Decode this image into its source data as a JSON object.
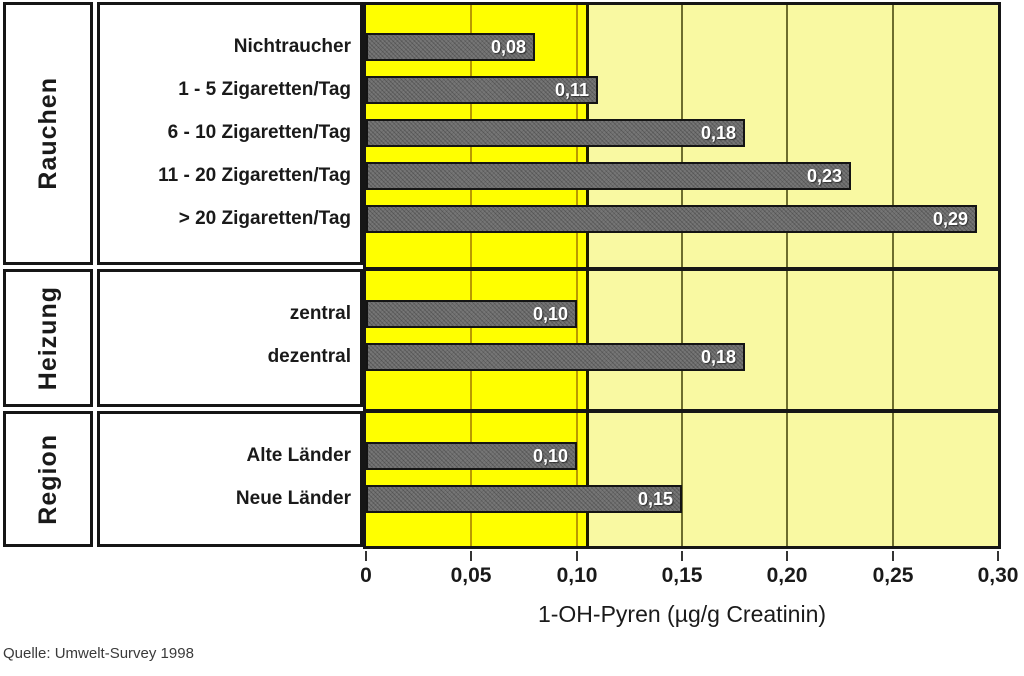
{
  "source_note": "Quelle: Umwelt-Survey 1998",
  "chart_data": {
    "type": "bar",
    "orientation": "horizontal",
    "xlabel": "1-OH-Pyren (µg/g Creatinin)",
    "xlim": [
      0,
      0.3
    ],
    "grid": true,
    "ticks": [
      {
        "value": 0,
        "label": "0"
      },
      {
        "value": 0.05,
        "label": "0,05"
      },
      {
        "value": 0.1,
        "label": "0,10"
      },
      {
        "value": 0.15,
        "label": "0,15"
      },
      {
        "value": 0.2,
        "label": "0,20"
      },
      {
        "value": 0.25,
        "label": "0,25"
      },
      {
        "value": 0.3,
        "label": "0,30"
      }
    ],
    "reference_band": {
      "from": 0,
      "to": 0.105
    },
    "groups": [
      {
        "label": "Rauchen",
        "items": [
          {
            "label": "Nichtraucher",
            "value": 0.08,
            "value_label": "0,08"
          },
          {
            "label": "1 - 5 Zigaretten/Tag",
            "value": 0.11,
            "value_label": "0,11"
          },
          {
            "label": "6 - 10 Zigaretten/Tag",
            "value": 0.18,
            "value_label": "0,18"
          },
          {
            "label": "11 - 20 Zigaretten/Tag",
            "value": 0.23,
            "value_label": "0,23"
          },
          {
            "label": "> 20 Zigaretten/Tag",
            "value": 0.29,
            "value_label": "0,29"
          }
        ]
      },
      {
        "label": "Heizung",
        "items": [
          {
            "label": "zentral",
            "value": 0.1,
            "value_label": "0,10"
          },
          {
            "label": "dezentral",
            "value": 0.18,
            "value_label": "0,18"
          }
        ]
      },
      {
        "label": "Region",
        "items": [
          {
            "label": "Alte Länder",
            "value": 0.1,
            "value_label": "0,10"
          },
          {
            "label": "Neue Länder",
            "value": 0.15,
            "value_label": "0,15"
          }
        ]
      }
    ],
    "colors": {
      "band_inner": "#ffff00",
      "band_outer": "#f9f9a2",
      "bar": "#767676",
      "bar_border": "#141414",
      "grid_inner": "#b99a00",
      "grid_outer": "#6e6e2e",
      "band_edge": "#1c1c00",
      "frame": "#161616"
    }
  }
}
